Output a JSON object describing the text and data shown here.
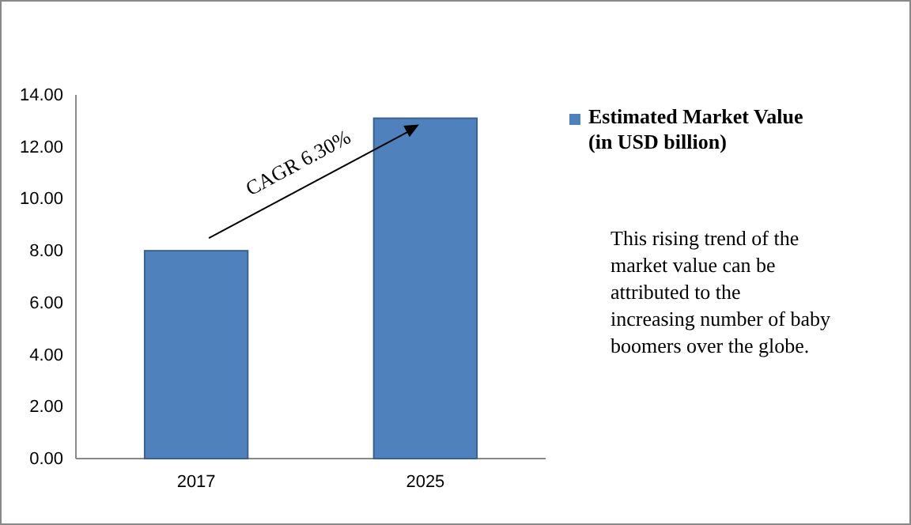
{
  "chart_data": {
    "type": "bar",
    "categories": [
      "2017",
      "2025"
    ],
    "series": [
      {
        "name": "Estimated Market Value (in USD billion)",
        "color": "#4f81bd",
        "values": [
          8.0,
          13.1
        ]
      }
    ],
    "ylim": [
      0,
      14
    ],
    "yticks": [
      {
        "value": 0,
        "label": "0.00"
      },
      {
        "value": 2,
        "label": "2.00"
      },
      {
        "value": 4,
        "label": "4.00"
      },
      {
        "value": 6,
        "label": "6.00"
      },
      {
        "value": 8,
        "label": "8.00"
      },
      {
        "value": 10,
        "label": "10.00"
      },
      {
        "value": 12,
        "label": "12.00"
      },
      {
        "value": 14,
        "label": "14.00"
      }
    ],
    "legend": "right",
    "grid": false,
    "annotations": [
      "CAGR 6.30%",
      "This rising trend of the market value can be attributed to the increasing number of baby boomers over the globe."
    ]
  }
}
